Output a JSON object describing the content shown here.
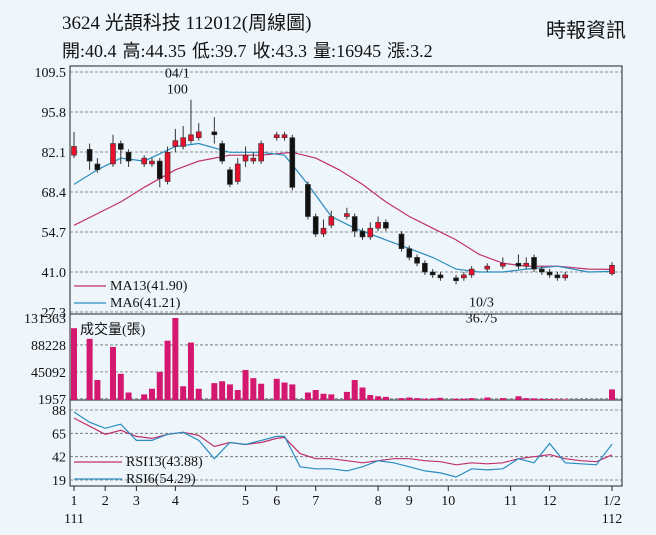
{
  "header": {
    "title": "3624  光頡科技 112012(周線圖)",
    "source": "時報資訊",
    "quote": [
      {
        "label": "開",
        "value": "40.4"
      },
      {
        "label": "高",
        "value": "44.35"
      },
      {
        "label": "低",
        "value": "39.7"
      },
      {
        "label": "收",
        "value": "43.3"
      },
      {
        "label": "量",
        "value": "16945"
      },
      {
        "label": "漲",
        "value": "3.2"
      }
    ]
  },
  "chart_data": [
    {
      "type": "candlestick",
      "panel": "price",
      "ylim": [
        27.3,
        109.5
      ],
      "y_ticks": [
        "109.5",
        "95.8",
        "82.1",
        "68.4",
        "54.7",
        "41.0",
        "27.3"
      ],
      "x_ticks": [
        {
          "label": "1",
          "sub": "111",
          "index": 0
        },
        {
          "label": "2",
          "index": 4
        },
        {
          "label": "3",
          "index": 8
        },
        {
          "label": "4",
          "index": 13
        },
        {
          "label": "5",
          "index": 22
        },
        {
          "label": "6",
          "index": 26
        },
        {
          "label": "7",
          "index": 31
        },
        {
          "label": "8",
          "index": 39
        },
        {
          "label": "9",
          "index": 43
        },
        {
          "label": "10",
          "index": 48
        },
        {
          "label": "11",
          "index": 56
        },
        {
          "label": "12",
          "index": 61
        },
        {
          "label": "1/2",
          "sub": "112",
          "index": 69
        }
      ],
      "annotations": [
        {
          "text": "04/1",
          "index": 13,
          "value": 100,
          "position": "above"
        },
        {
          "text": "100",
          "index": 13,
          "value": 100,
          "position": "above"
        },
        {
          "text": "10/3",
          "index": 52,
          "value": 36.75,
          "position": "below"
        },
        {
          "text": "36.75",
          "index": 52,
          "value": 36.75,
          "position": "below"
        }
      ],
      "legend": [
        {
          "name": "MA13(41.90)",
          "color": "#c0306a"
        },
        {
          "name": "MA6(41.21)",
          "color": "#2b8cbf"
        }
      ],
      "up_color": "#e8102e",
      "down_color": "#111111",
      "candles": [
        {
          "o": 81,
          "c": 84,
          "h": 89,
          "l": 80
        },
        {
          "o": 83,
          "c": 79,
          "h": 85,
          "l": 76
        },
        {
          "o": 78,
          "c": 76,
          "h": 80,
          "l": 75
        },
        {
          "o": 78,
          "c": 85,
          "h": 88,
          "l": 77
        },
        {
          "o": 85,
          "c": 83,
          "h": 86,
          "l": 78
        },
        {
          "o": 82,
          "c": 79,
          "h": 83,
          "l": 77
        },
        {
          "o": 78,
          "c": 80,
          "h": 81,
          "l": 77
        },
        {
          "o": 78,
          "c": 79,
          "h": 80,
          "l": 77
        },
        {
          "o": 79,
          "c": 73,
          "h": 80,
          "l": 70
        },
        {
          "o": 72,
          "c": 82,
          "h": 84,
          "l": 71
        },
        {
          "o": 84,
          "c": 86,
          "h": 90,
          "l": 82
        },
        {
          "o": 84,
          "c": 87,
          "h": 91,
          "l": 83
        },
        {
          "o": 86,
          "c": 88,
          "h": 100,
          "l": 85
        },
        {
          "o": 87,
          "c": 89,
          "h": 92,
          "l": 86
        },
        {
          "o": 89,
          "c": 88,
          "h": 94,
          "l": 85
        },
        {
          "o": 85,
          "c": 79,
          "h": 86,
          "l": 78
        },
        {
          "o": 76,
          "c": 71,
          "h": 77,
          "l": 70
        },
        {
          "o": 72,
          "c": 78,
          "h": 80,
          "l": 71
        },
        {
          "o": 79,
          "c": 81,
          "h": 84,
          "l": 77
        },
        {
          "o": 79,
          "c": 80,
          "h": 82,
          "l": 78
        },
        {
          "o": 79,
          "c": 85,
          "h": 86,
          "l": 78
        },
        {
          "o": 87,
          "c": 88,
          "h": 89,
          "l": 86
        },
        {
          "o": 87,
          "c": 88,
          "h": 89,
          "l": 86
        },
        {
          "o": 87,
          "c": 70,
          "h": 88,
          "l": 69
        },
        {
          "o": 71,
          "c": 60,
          "h": 72,
          "l": 59
        },
        {
          "o": 60,
          "c": 54,
          "h": 61,
          "l": 53
        },
        {
          "o": 54,
          "c": 56,
          "h": 59,
          "l": 53
        },
        {
          "o": 57,
          "c": 60,
          "h": 62,
          "l": 56
        },
        {
          "o": 60,
          "c": 61,
          "h": 63,
          "l": 59
        },
        {
          "o": 60,
          "c": 55,
          "h": 61,
          "l": 53
        },
        {
          "o": 55,
          "c": 53,
          "h": 56,
          "l": 52
        },
        {
          "o": 53,
          "c": 56,
          "h": 58,
          "l": 52
        },
        {
          "o": 56,
          "c": 58,
          "h": 60,
          "l": 55
        },
        {
          "o": 58,
          "c": 56,
          "h": 59,
          "l": 55
        },
        {
          "o": 54,
          "c": 49,
          "h": 55,
          "l": 48
        },
        {
          "o": 49,
          "c": 46,
          "h": 50,
          "l": 45
        },
        {
          "o": 46,
          "c": 44,
          "h": 47,
          "l": 43
        },
        {
          "o": 44,
          "c": 41,
          "h": 45,
          "l": 40
        },
        {
          "o": 41,
          "c": 40,
          "h": 42,
          "l": 39
        },
        {
          "o": 40,
          "c": 39,
          "h": 41,
          "l": 38
        },
        {
          "o": 39,
          "c": 38,
          "h": 40,
          "l": 36.75
        },
        {
          "o": 39,
          "c": 40,
          "h": 41,
          "l": 38
        },
        {
          "o": 40,
          "c": 42,
          "h": 43,
          "l": 39
        },
        {
          "o": 42,
          "c": 43,
          "h": 44,
          "l": 41
        },
        {
          "o": 43,
          "c": 44,
          "h": 46,
          "l": 42
        },
        {
          "o": 44,
          "c": 43,
          "h": 47,
          "l": 42
        },
        {
          "o": 43,
          "c": 44,
          "h": 46,
          "l": 42
        },
        {
          "o": 46,
          "c": 42,
          "h": 47,
          "l": 41
        },
        {
          "o": 42,
          "c": 41,
          "h": 43,
          "l": 40
        },
        {
          "o": 41,
          "c": 40,
          "h": 42,
          "l": 39
        },
        {
          "o": 40,
          "c": 39,
          "h": 41,
          "l": 38
        },
        {
          "o": 39,
          "c": 40,
          "h": 41,
          "l": 38
        },
        {
          "o": 40.4,
          "c": 43.3,
          "h": 44.35,
          "l": 39.7
        }
      ],
      "candle_x_index": [
        0,
        2,
        3,
        5,
        6,
        7,
        9,
        10,
        11,
        12,
        13,
        14,
        15,
        16,
        18,
        19,
        20,
        21,
        22,
        23,
        24,
        26,
        27,
        28,
        30,
        31,
        32,
        33,
        35,
        36,
        37,
        38,
        39,
        40,
        42,
        43,
        44,
        45,
        46,
        47,
        49,
        50,
        51,
        53,
        55,
        57,
        58,
        59,
        60,
        61,
        62,
        63,
        69
      ],
      "ma13": [
        [
          0,
          57
        ],
        [
          3,
          61
        ],
        [
          6,
          65
        ],
        [
          9,
          70
        ],
        [
          13,
          76
        ],
        [
          16,
          79
        ],
        [
          20,
          81
        ],
        [
          24,
          81
        ],
        [
          28,
          82
        ],
        [
          31,
          80
        ],
        [
          34,
          76
        ],
        [
          37,
          71
        ],
        [
          40,
          65
        ],
        [
          43,
          60
        ],
        [
          46,
          56
        ],
        [
          49,
          52
        ],
        [
          52,
          47
        ],
        [
          55,
          44
        ],
        [
          58,
          43
        ],
        [
          62,
          43
        ],
        [
          66,
          42
        ],
        [
          69,
          41.9
        ]
      ],
      "ma6": [
        [
          0,
          71
        ],
        [
          3,
          76
        ],
        [
          6,
          80
        ],
        [
          9,
          79
        ],
        [
          13,
          84
        ],
        [
          16,
          85
        ],
        [
          20,
          82
        ],
        [
          24,
          82
        ],
        [
          27,
          81
        ],
        [
          30,
          71
        ],
        [
          33,
          60
        ],
        [
          36,
          56
        ],
        [
          40,
          52
        ],
        [
          43,
          49
        ],
        [
          46,
          46
        ],
        [
          49,
          42
        ],
        [
          52,
          41
        ],
        [
          55,
          41
        ],
        [
          58,
          42
        ],
        [
          62,
          43
        ],
        [
          66,
          41
        ],
        [
          69,
          41.21
        ]
      ]
    },
    {
      "type": "bar",
      "panel": "volume",
      "title": "成交量(張)",
      "ylim": [
        0,
        131363
      ],
      "y_ticks": [
        "131363",
        "88228",
        "45092",
        "1957"
      ],
      "color": "#d4176f",
      "x_index": [
        0,
        2,
        3,
        5,
        6,
        7,
        9,
        10,
        11,
        12,
        13,
        14,
        15,
        16,
        18,
        19,
        20,
        21,
        22,
        23,
        24,
        26,
        27,
        28,
        30,
        31,
        32,
        33,
        35,
        36,
        37,
        38,
        39,
        40,
        42,
        43,
        44,
        45,
        46,
        47,
        49,
        50,
        51,
        53,
        55,
        57,
        58,
        59,
        60,
        61,
        62,
        63,
        69
      ],
      "values": [
        115000,
        98000,
        32000,
        85000,
        42000,
        12000,
        9000,
        18000,
        45000,
        95000,
        138000,
        22000,
        92000,
        18000,
        27000,
        30000,
        25000,
        16000,
        48000,
        35000,
        26000,
        34000,
        28000,
        25000,
        12000,
        16000,
        10000,
        9000,
        13000,
        32000,
        20000,
        8000,
        6000,
        5000,
        3000,
        4000,
        3000,
        2000,
        2500,
        3500,
        2000,
        2000,
        3000,
        4000,
        3000,
        6000,
        3000,
        2500,
        2000,
        1500,
        1200,
        1000,
        16945
      ]
    },
    {
      "type": "line",
      "panel": "rsi",
      "ylim": [
        19,
        88
      ],
      "y_ticks": [
        "88",
        "65",
        "42",
        "19"
      ],
      "legend": [
        {
          "name": "RSI13(43.88)",
          "color": "#c0306a"
        },
        {
          "name": "RSI6(54.29)",
          "color": "#2b8cbf"
        }
      ],
      "series": [
        {
          "name": "RSI13",
          "points": [
            [
              0,
              80
            ],
            [
              2,
              72
            ],
            [
              4,
              64
            ],
            [
              6,
              68
            ],
            [
              8,
              62
            ],
            [
              10,
              60
            ],
            [
              12,
              64
            ],
            [
              14,
              66
            ],
            [
              16,
              63
            ],
            [
              18,
              52
            ],
            [
              20,
              56
            ],
            [
              22,
              54
            ],
            [
              24,
              56
            ],
            [
              26,
              60
            ],
            [
              27,
              61
            ],
            [
              29,
              45
            ],
            [
              31,
              40
            ],
            [
              33,
              40
            ],
            [
              35,
              38
            ],
            [
              37,
              36
            ],
            [
              39,
              38
            ],
            [
              41,
              40
            ],
            [
              43,
              40
            ],
            [
              45,
              38
            ],
            [
              47,
              37
            ],
            [
              49,
              34
            ],
            [
              51,
              36
            ],
            [
              53,
              35
            ],
            [
              55,
              36
            ],
            [
              57,
              40
            ],
            [
              59,
              42
            ],
            [
              61,
              44
            ],
            [
              63,
              40
            ],
            [
              65,
              38
            ],
            [
              67,
              37
            ],
            [
              69,
              43.88
            ]
          ]
        },
        {
          "name": "RSI6",
          "points": [
            [
              0,
              86
            ],
            [
              2,
              76
            ],
            [
              4,
              70
            ],
            [
              6,
              74
            ],
            [
              8,
              58
            ],
            [
              10,
              58
            ],
            [
              12,
              64
            ],
            [
              14,
              66
            ],
            [
              16,
              58
            ],
            [
              18,
              40
            ],
            [
              20,
              56
            ],
            [
              22,
              54
            ],
            [
              24,
              58
            ],
            [
              26,
              62
            ],
            [
              27,
              62
            ],
            [
              29,
              32
            ],
            [
              31,
              30
            ],
            [
              33,
              30
            ],
            [
              35,
              28
            ],
            [
              37,
              32
            ],
            [
              39,
              38
            ],
            [
              41,
              36
            ],
            [
              43,
              32
            ],
            [
              45,
              28
            ],
            [
              47,
              26
            ],
            [
              49,
              22
            ],
            [
              51,
              30
            ],
            [
              53,
              29
            ],
            [
              55,
              30
            ],
            [
              57,
              40
            ],
            [
              59,
              36
            ],
            [
              61,
              55
            ],
            [
              63,
              36
            ],
            [
              65,
              35
            ],
            [
              67,
              34
            ],
            [
              69,
              54.29
            ]
          ]
        }
      ]
    }
  ]
}
